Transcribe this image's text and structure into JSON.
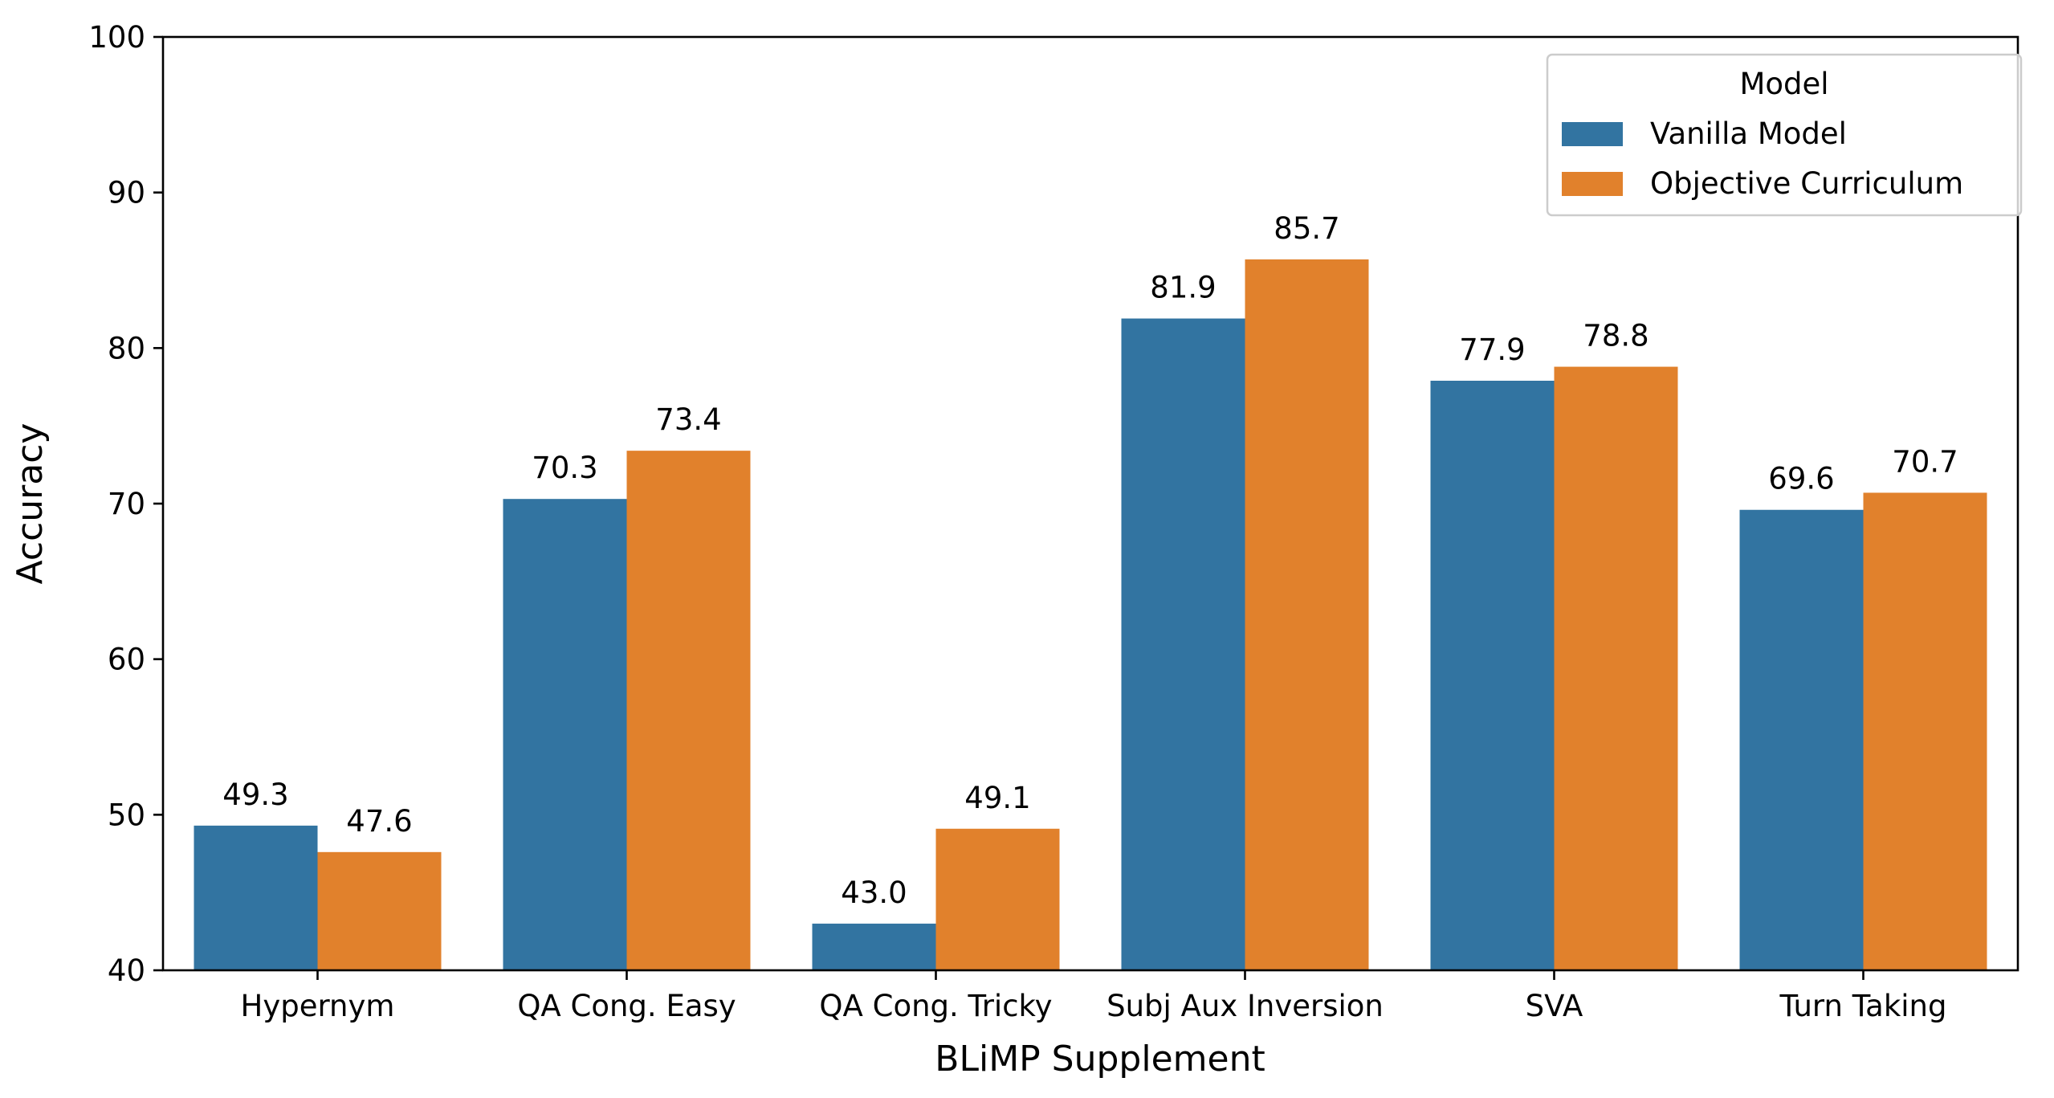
{
  "chart_data": {
    "type": "bar",
    "title": "",
    "xlabel": "BLiMP Supplement",
    "ylabel": "Accuracy",
    "ylim": [
      40,
      100
    ],
    "yticks": [
      "40",
      "50",
      "60",
      "70",
      "80",
      "90",
      "100"
    ],
    "categories": [
      "Hypernym",
      "QA Cong. Easy",
      "QA Cong. Tricky",
      "Subj Aux Inversion",
      "SVA",
      "Turn Taking"
    ],
    "series": [
      {
        "name": "Vanilla Model",
        "color": "#3274a1",
        "values": [
          49.3,
          70.3,
          43.0,
          81.9,
          77.9,
          69.6
        ],
        "labels": [
          "49.3",
          "70.3",
          "43.0",
          "81.9",
          "77.9",
          "69.6"
        ]
      },
      {
        "name": "Objective Curriculum",
        "color": "#e1812c",
        "values": [
          47.6,
          73.4,
          49.1,
          85.7,
          78.8,
          70.7
        ],
        "labels": [
          "47.6",
          "73.4",
          "49.1",
          "85.7",
          "78.8",
          "70.7"
        ]
      }
    ],
    "legend": {
      "title": "Model",
      "position": "top-right"
    },
    "grid": false
  }
}
